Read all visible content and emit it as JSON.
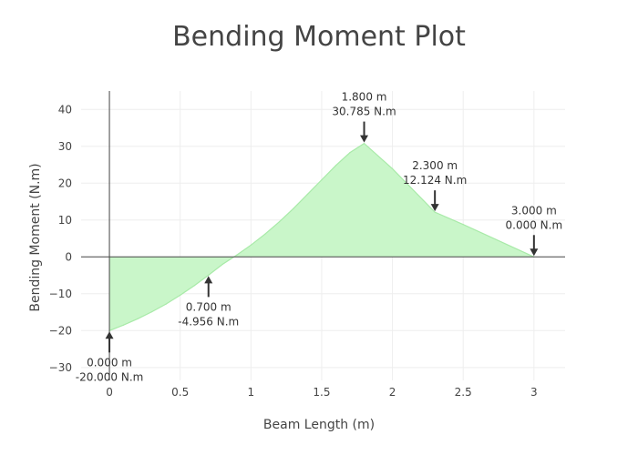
{
  "chart_data": {
    "type": "area",
    "title": "Bending Moment Plot",
    "xlabel": "Beam Length (m)",
    "ylabel": "Bending Moment (N.m)",
    "xlim": [
      -0.2,
      3.22
    ],
    "ylim": [
      -33.5,
      45
    ],
    "x_ticks": [
      0,
      0.5,
      1,
      1.5,
      2,
      2.5,
      3
    ],
    "x_tick_labels": [
      "0",
      "0.5",
      "1",
      "1.5",
      "2",
      "2.5",
      "3"
    ],
    "y_ticks": [
      -30,
      -20,
      -10,
      0,
      10,
      20,
      30,
      40
    ],
    "y_tick_labels": [
      "−30",
      "−20",
      "−10",
      "0",
      "10",
      "20",
      "30",
      "40"
    ],
    "grid": true,
    "fill_color": "#c6f5c6",
    "line_color": "#a8eaa8",
    "series": [
      {
        "x": [
          0,
          0.1,
          0.2,
          0.3,
          0.4,
          0.5,
          0.6,
          0.7,
          0.8,
          0.9,
          1.0,
          1.1,
          1.2,
          1.3,
          1.4,
          1.5,
          1.6,
          1.7,
          1.8,
          2.0,
          2.3,
          2.5,
          3.0
        ],
        "y": [
          -20,
          -18.5,
          -16.8,
          -14.9,
          -12.8,
          -10.4,
          -7.8,
          -4.956,
          -2.0,
          0.5,
          3.2,
          6.2,
          9.5,
          13.1,
          17.0,
          20.9,
          24.8,
          28.3,
          30.785,
          23.9,
          12.124,
          8.8,
          0
        ]
      }
    ],
    "annotations": [
      {
        "x": 0,
        "y": -20,
        "line1": "0.000 m",
        "line2": "-20.000 N.m",
        "direction": "up"
      },
      {
        "x": 0.7,
        "y": -4.956,
        "line1": "0.700 m",
        "line2": "-4.956 N.m",
        "direction": "up"
      },
      {
        "x": 1.8,
        "y": 30.785,
        "line1": "1.800 m",
        "line2": "30.785 N.m",
        "direction": "down"
      },
      {
        "x": 2.3,
        "y": 12.124,
        "line1": "2.300 m",
        "line2": "12.124 N.m",
        "direction": "down"
      },
      {
        "x": 3.0,
        "y": 0,
        "line1": "3.000 m",
        "line2": "0.000 N.m",
        "direction": "down"
      }
    ]
  }
}
